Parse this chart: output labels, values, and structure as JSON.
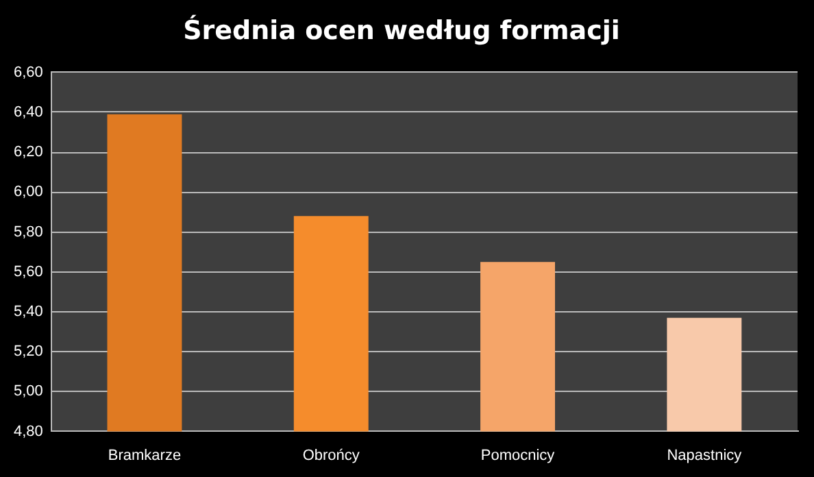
{
  "chart_data": {
    "type": "bar",
    "title": "Średnia ocen według formacji",
    "categories": [
      "Bramkarze",
      "Obrońcy",
      "Pomocnicy",
      "Napastnicy"
    ],
    "values": [
      6.39,
      5.88,
      5.65,
      5.37
    ],
    "colors": [
      "#e07a22",
      "#f58c2c",
      "#f5a569",
      "#f8c9aa"
    ],
    "ylim": [
      4.8,
      6.6
    ],
    "yticks": [
      {
        "value": 4.8,
        "label": "4,80"
      },
      {
        "value": 5.0,
        "label": "5,00"
      },
      {
        "value": 5.2,
        "label": "5,20"
      },
      {
        "value": 5.4,
        "label": "5,40"
      },
      {
        "value": 5.6,
        "label": "5,60"
      },
      {
        "value": 5.8,
        "label": "5,80"
      },
      {
        "value": 6.0,
        "label": "6,00"
      },
      {
        "value": 6.2,
        "label": "6,20"
      },
      {
        "value": 6.4,
        "label": "6,40"
      },
      {
        "value": 6.6,
        "label": "6,60"
      }
    ],
    "grid": "y",
    "legend": false
  }
}
